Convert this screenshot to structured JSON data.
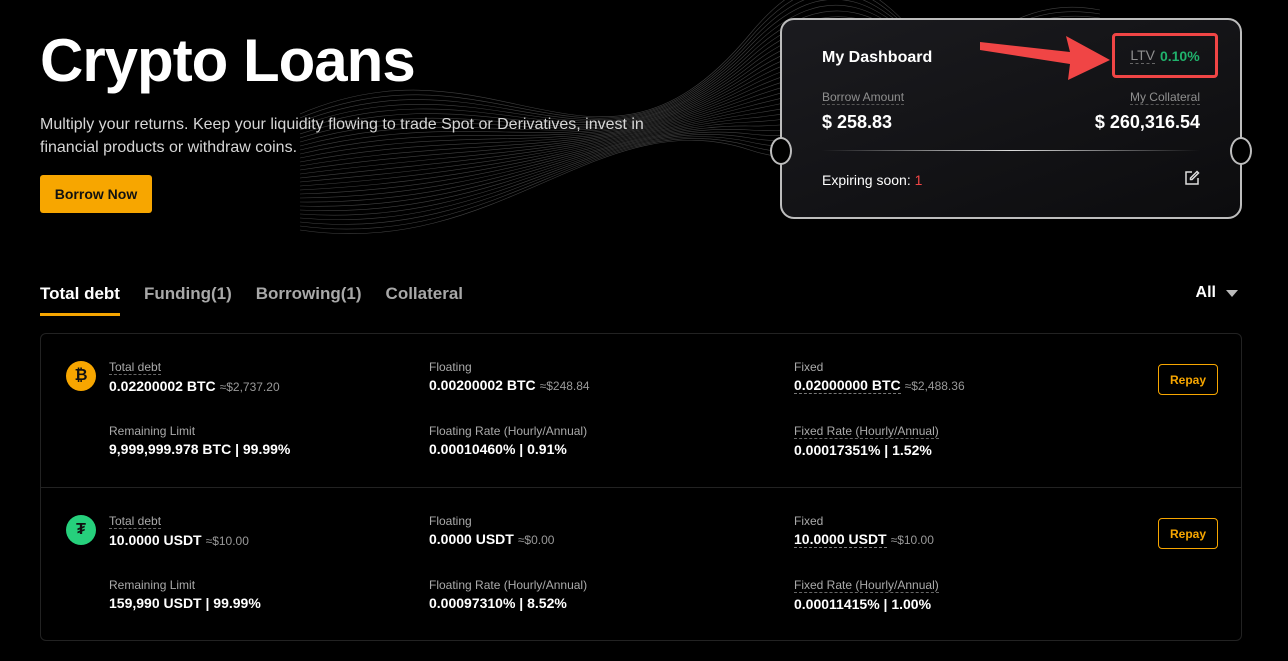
{
  "hero": {
    "title": "Crypto Loans",
    "subtitle": "Multiply your returns. Keep your liquidity flowing to trade Spot or Derivatives, invest in financial products or withdraw coins.",
    "borrow_button": "Borrow Now"
  },
  "dashboard": {
    "title": "My Dashboard",
    "ltv_label": "LTV",
    "ltv_value": "0.10%",
    "borrow_label": "Borrow Amount",
    "borrow_value": "$ 258.83",
    "collateral_label": "My Collateral",
    "collateral_value": "$ 260,316.54",
    "expiring_label": "Expiring soon:",
    "expiring_count": "1"
  },
  "tabs": [
    {
      "label": "Total debt",
      "active": true
    },
    {
      "label": "Funding(1)"
    },
    {
      "label": "Borrowing(1)"
    },
    {
      "label": "Collateral"
    }
  ],
  "filter": {
    "value": "All"
  },
  "colors": {
    "accent": "#f7a600",
    "positive": "#20b26c",
    "negative": "#f04545",
    "highlight": "#f04545"
  },
  "rows": [
    {
      "coin": "BTC",
      "icon": "bitcoin-icon",
      "icon_glyph": "₿",
      "color": "#f7a600",
      "total_label": "Total debt",
      "total": "0.02200002 BTC",
      "total_usd": "≈$2,737.20",
      "floating_label": "Floating",
      "floating": "0.00200002 BTC",
      "floating_usd": "≈$248.84",
      "fixed_label": "Fixed",
      "fixed": "0.02000000 BTC",
      "fixed_usd": "≈$2,488.36",
      "limit_label": "Remaining Limit",
      "limit": "9,999,999.978 BTC | 99.99%",
      "frate_label": "Floating Rate (Hourly/Annual)",
      "frate": "0.00010460% | 0.91%",
      "xrate_label": "Fixed Rate (Hourly/Annual)",
      "xrate": "0.00017351% | 1.52%",
      "repay": "Repay"
    },
    {
      "coin": "USDT",
      "icon": "tether-icon",
      "icon_glyph": "₮",
      "color": "#26d07c",
      "total_label": "Total debt",
      "total": "10.0000 USDT",
      "total_usd": "≈$10.00",
      "floating_label": "Floating",
      "floating": "0.0000 USDT",
      "floating_usd": "≈$0.00",
      "fixed_label": "Fixed",
      "fixed": "10.0000 USDT",
      "fixed_usd": "≈$10.00",
      "limit_label": "Remaining Limit",
      "limit": "159,990 USDT | 99.99%",
      "frate_label": "Floating Rate (Hourly/Annual)",
      "frate": "0.00097310% | 8.52%",
      "xrate_label": "Fixed Rate (Hourly/Annual)",
      "xrate": "0.00011415% | 1.00%",
      "repay": "Repay"
    }
  ]
}
